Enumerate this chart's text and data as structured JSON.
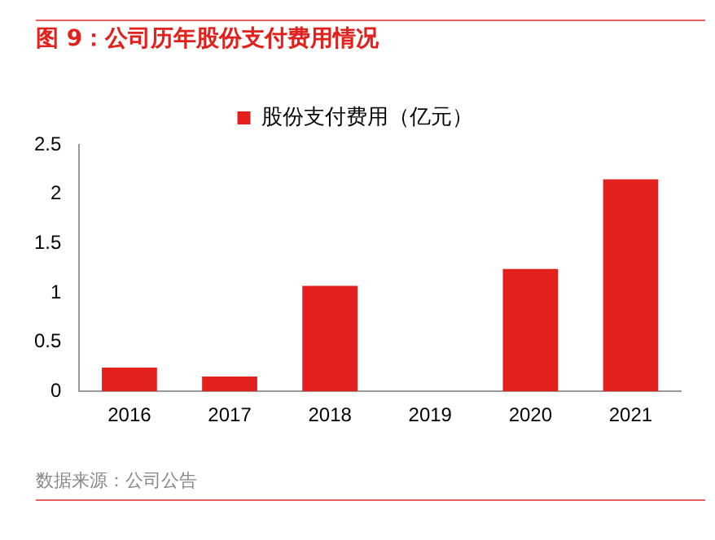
{
  "chart_data": {
    "type": "bar",
    "title": "图 9：公司历年股份支付费用情况",
    "categories": [
      "2016",
      "2017",
      "2018",
      "2019",
      "2020",
      "2021"
    ],
    "series": [
      {
        "name": "股份支付费用（亿元）",
        "color": "#e2201c",
        "values": [
          0.24,
          0.15,
          1.07,
          0,
          1.24,
          2.15
        ]
      }
    ],
    "ylim": [
      0,
      2.5
    ],
    "yticks": [
      0,
      0.5,
      1,
      1.5,
      2,
      2.5
    ],
    "grid": false,
    "legend": "top",
    "annotations": [
      "数据来源：公司公告"
    ]
  }
}
